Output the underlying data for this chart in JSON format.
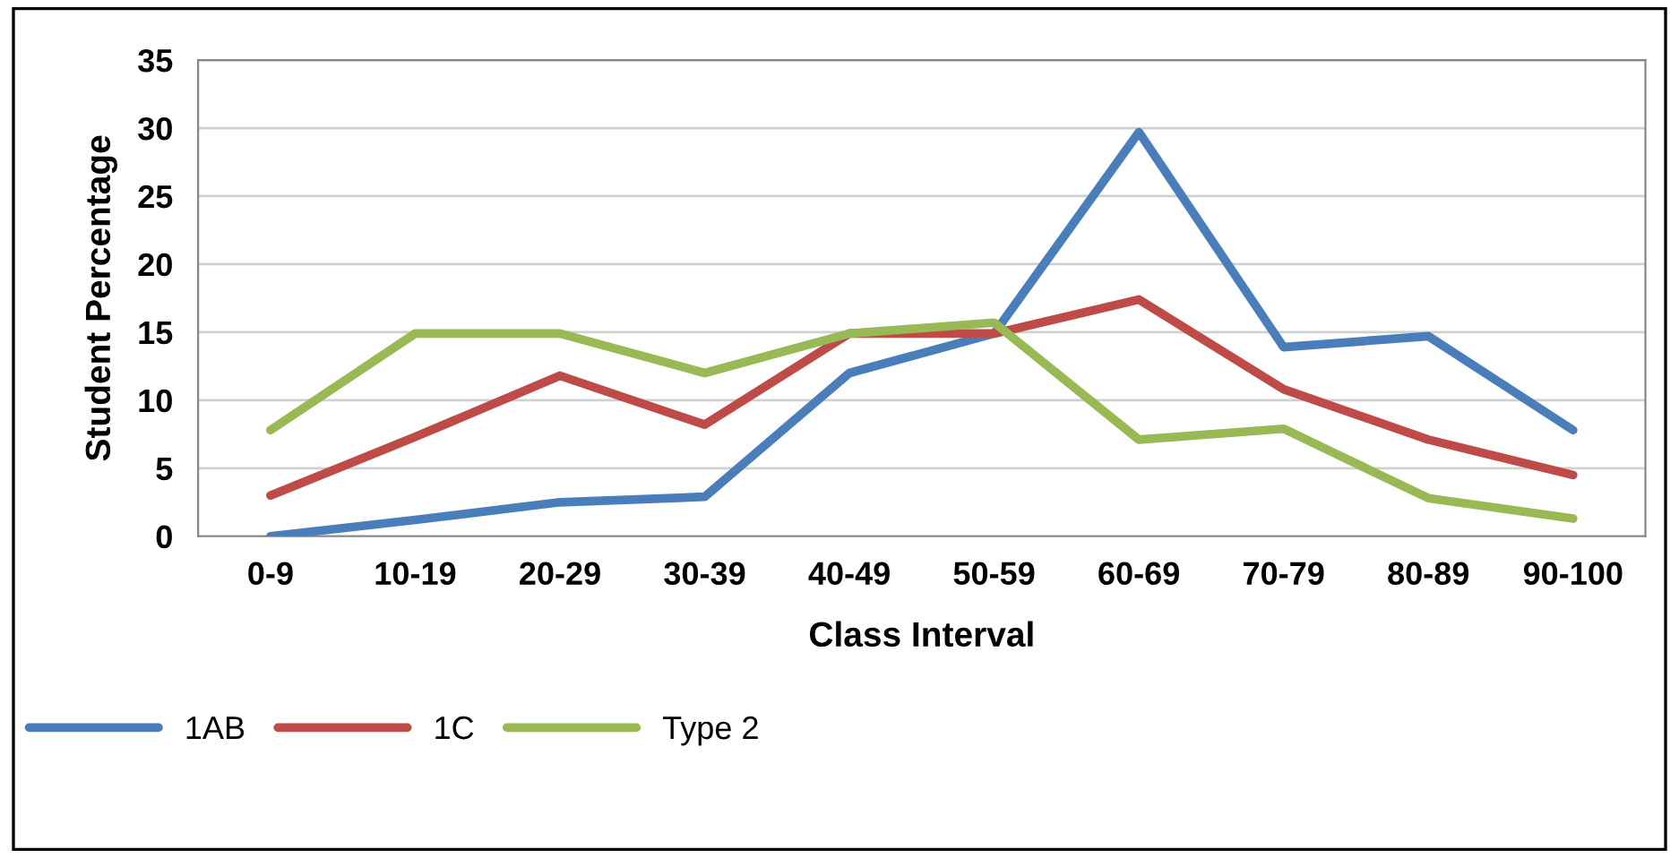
{
  "chart_data": {
    "type": "line",
    "xlabel": "Class Interval",
    "ylabel": "Student Percentage",
    "categories": [
      "0-9",
      "10-19",
      "20-29",
      "30-39",
      "40-49",
      "50-59",
      "60-69",
      "70-79",
      "80-89",
      "90-100"
    ],
    "series": [
      {
        "name": "1AB",
        "color": "#4a7ebb",
        "values": [
          0,
          1.2,
          2.5,
          2.9,
          12,
          14.9,
          29.7,
          13.9,
          14.7,
          7.8
        ]
      },
      {
        "name": "1C",
        "color": "#be4b48",
        "values": [
          3.0,
          7.3,
          11.8,
          8.2,
          14.9,
          14.9,
          17.4,
          10.8,
          7.1,
          4.5
        ]
      },
      {
        "name": "Type 2",
        "color": "#98b954",
        "values": [
          7.8,
          14.9,
          14.9,
          12,
          14.9,
          15.7,
          7.1,
          7.9,
          2.8,
          1.3
        ]
      }
    ],
    "ylim": [
      0,
      35
    ],
    "yticks": [
      0,
      5,
      10,
      15,
      20,
      25,
      30,
      35
    ],
    "grid": "y",
    "legend": "bottom left",
    "marker": "none",
    "line_style": "solid"
  }
}
